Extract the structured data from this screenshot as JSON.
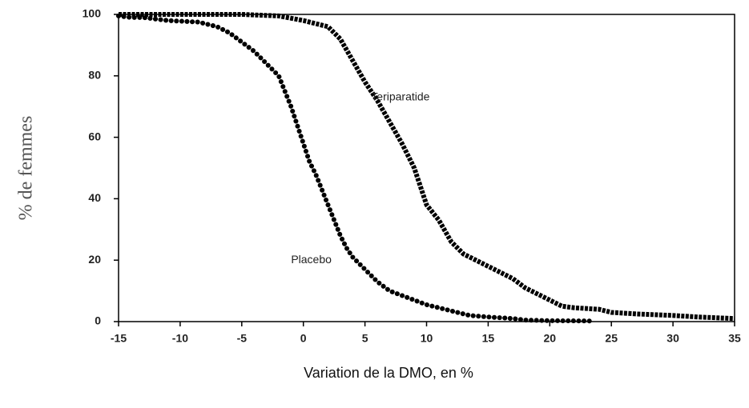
{
  "chart_data": {
    "type": "line",
    "y_label": "% de femmes",
    "x_label": "Variation de la DMO, en %",
    "annotations": [
      {
        "text": "Teriparatide",
        "x": 5.5,
        "y": 73
      },
      {
        "text": "Placebo",
        "x": -1,
        "y": 20
      }
    ],
    "xlim": [
      -15,
      35
    ],
    "xticks": [
      -15,
      -10,
      -5,
      0,
      5,
      10,
      15,
      20,
      25,
      30,
      35
    ],
    "ylim": [
      0,
      100
    ],
    "yticks": [
      0,
      20,
      40,
      60,
      80,
      100
    ],
    "series": [
      {
        "name": "Placebo",
        "color": "#000000",
        "x": [
          -15,
          -14,
          -13,
          -12,
          -11,
          -8.5,
          -7,
          -6,
          -5,
          -4,
          -3,
          -2,
          -1.5,
          -1,
          -0.5,
          0,
          0.5,
          1,
          1.5,
          2,
          2.5,
          3,
          3.5,
          4,
          5,
          6,
          7,
          8,
          9,
          10,
          11,
          12,
          13,
          13.5,
          15,
          17,
          18,
          20,
          23.5
        ],
        "values": [
          99.5,
          99,
          99,
          98.5,
          98,
          97.5,
          96,
          94,
          91,
          88,
          84,
          80,
          75,
          70,
          64,
          58,
          52,
          48,
          43,
          38,
          33,
          28,
          24,
          21,
          17,
          13,
          10,
          8.5,
          7,
          5.5,
          4.5,
          3.5,
          2.5,
          2,
          1.5,
          1,
          0.5,
          0.3,
          0.2
        ]
      },
      {
        "name": "Teriparatide",
        "color": "#000000",
        "x": [
          -15,
          -8,
          -6,
          -5,
          -2,
          0,
          1,
          2,
          3,
          4,
          5,
          6,
          7,
          8,
          9,
          10,
          11,
          12,
          13,
          14,
          15,
          16,
          17,
          18,
          19,
          20,
          21,
          22,
          24,
          25,
          27,
          30,
          32,
          35
        ],
        "values": [
          100,
          100,
          100,
          100,
          99.5,
          98,
          97,
          96,
          92,
          85,
          78,
          72,
          65,
          58,
          50,
          38,
          33,
          26,
          22,
          20,
          18,
          16,
          14,
          11,
          9,
          7,
          5,
          4.5,
          4,
          3,
          2.5,
          2,
          1.5,
          1
        ]
      }
    ]
  }
}
